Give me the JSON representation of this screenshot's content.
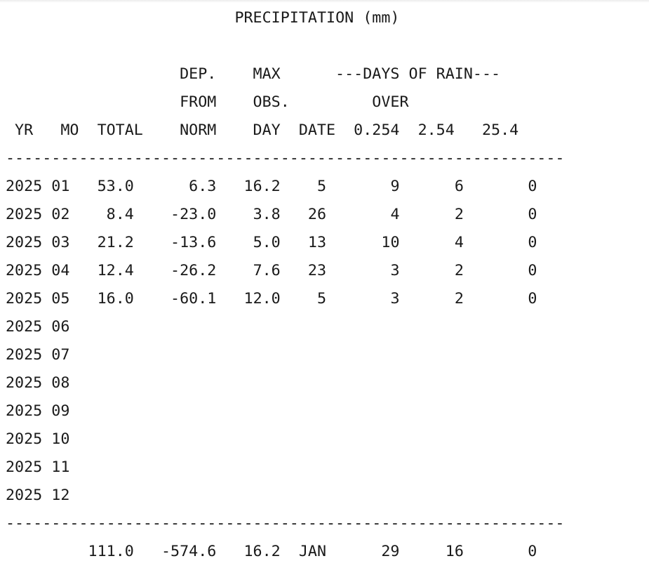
{
  "report": {
    "title": "PRECIPITATION (mm)",
    "header_lines": [
      "                   DEP.    MAX      ---DAYS OF RAIN---",
      "                   FROM    OBS.         OVER",
      " YR   MO  TOTAL    NORM    DAY  DATE  0.254  2.54   25.4"
    ],
    "separator": "-------------------------------------------------------------",
    "rows": [
      {
        "yr": "2025",
        "mo": "01",
        "total": "53.0",
        "dep": "6.3",
        "max": "16.2",
        "date": "5",
        "d0254": "9",
        "d254": "6",
        "d254x": "0"
      },
      {
        "yr": "2025",
        "mo": "02",
        "total": "8.4",
        "dep": "-23.0",
        "max": "3.8",
        "date": "26",
        "d0254": "4",
        "d254": "2",
        "d254x": "0"
      },
      {
        "yr": "2025",
        "mo": "03",
        "total": "21.2",
        "dep": "-13.6",
        "max": "5.0",
        "date": "13",
        "d0254": "10",
        "d254": "4",
        "d254x": "0"
      },
      {
        "yr": "2025",
        "mo": "04",
        "total": "12.4",
        "dep": "-26.2",
        "max": "7.6",
        "date": "23",
        "d0254": "3",
        "d254": "2",
        "d254x": "0"
      },
      {
        "yr": "2025",
        "mo": "05",
        "total": "16.0",
        "dep": "-60.1",
        "max": "12.0",
        "date": "5",
        "d0254": "3",
        "d254": "2",
        "d254x": "0"
      },
      {
        "yr": "2025",
        "mo": "06"
      },
      {
        "yr": "2025",
        "mo": "07"
      },
      {
        "yr": "2025",
        "mo": "08"
      },
      {
        "yr": "2025",
        "mo": "09"
      },
      {
        "yr": "2025",
        "mo": "10"
      },
      {
        "yr": "2025",
        "mo": "11"
      },
      {
        "yr": "2025",
        "mo": "12"
      }
    ],
    "totals": {
      "total": "111.0",
      "dep": "-574.6",
      "max": "16.2",
      "date": "JAN",
      "d0254": "29",
      "d254": "16",
      "d254x": "0"
    }
  }
}
